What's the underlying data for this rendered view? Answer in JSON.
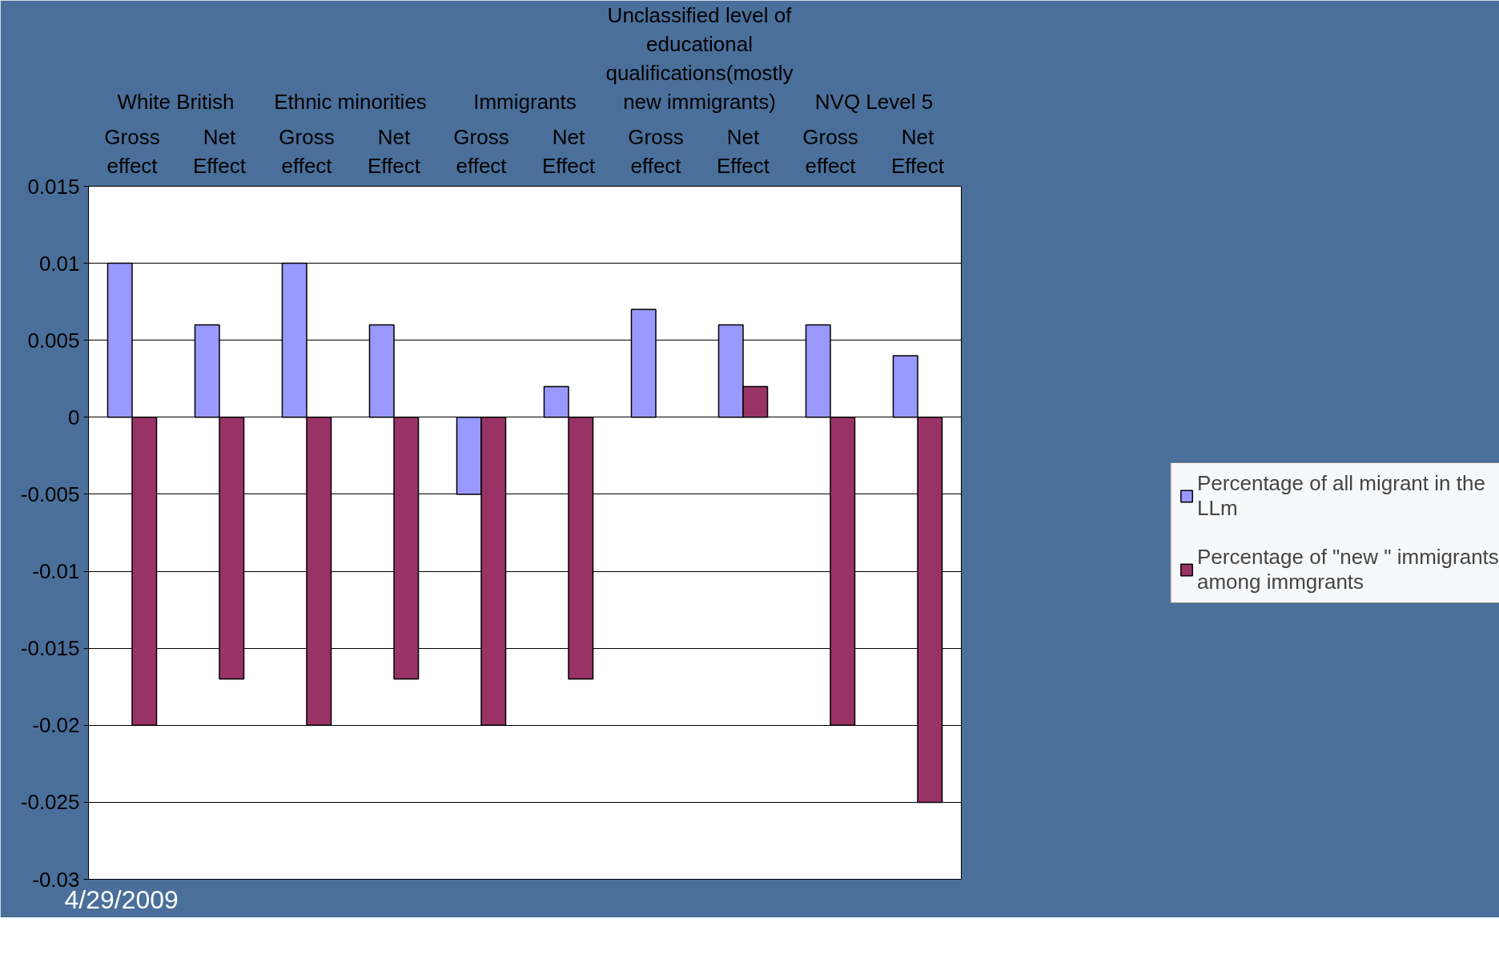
{
  "chart_data": {
    "type": "bar",
    "categories": [
      "Gross effect",
      "Net Effect",
      "Gross effect",
      "Net Effect",
      "Gross effect",
      "Net Effect",
      "Gross effect",
      "Net Effect",
      "Gross effect",
      "Net Effect"
    ],
    "series": [
      {
        "name": "Percentage of all migrant in the LLm",
        "color": "#9999ff",
        "values": [
          0.01,
          0.006,
          0.01,
          0.006,
          -0.005,
          0.002,
          0.007,
          0.006,
          0.006,
          0.004
        ]
      },
      {
        "name": "Percentage of \"new \" immigrants among immgrants",
        "color": "#993366",
        "values": [
          -0.02,
          -0.017,
          -0.02,
          -0.017,
          -0.02,
          -0.017,
          null,
          0.002,
          -0.02,
          -0.025
        ]
      }
    ],
    "ylim": [
      -0.03,
      0.015
    ],
    "yticks": [
      -0.03,
      -0.025,
      -0.02,
      -0.015,
      -0.01,
      -0.005,
      0,
      0.005,
      0.01,
      0.015
    ],
    "grid": "y",
    "legend": "right",
    "annotations": [
      "White British",
      "Ethnic minorities",
      "Immigrants",
      "Unclassified level of educational qualifications(mostly new immigrants)",
      "NVQ Level 5",
      "4/29/2009"
    ]
  }
}
